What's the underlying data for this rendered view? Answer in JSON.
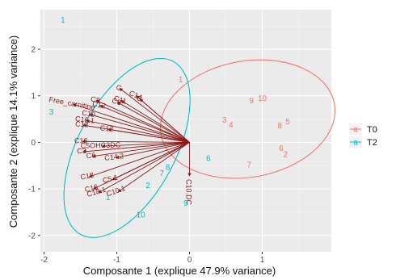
{
  "chart_data": {
    "type": "scatter",
    "title": "",
    "xlabel": "Composante 1 (explique 47.9% variance)",
    "ylabel": "Composante 2 (explique 14.1% variance)",
    "xlim": [
      -2.05,
      1.95
    ],
    "ylim": [
      -2.35,
      2.85
    ],
    "xticks": [
      -2,
      -1,
      0,
      1
    ],
    "yticks": [
      -2,
      -1,
      0,
      1,
      2
    ],
    "tick_labels_x": [
      "-2",
      "-1",
      "0",
      "1"
    ],
    "tick_labels_y": [
      "-2",
      "-1",
      "0",
      "1",
      "2"
    ],
    "grid": true,
    "legend_position": "right",
    "colors": {
      "T0": "#f8766d",
      "T2": "#00bfc4",
      "arrow": "#8b1a1a",
      "panel": "#ebebeb",
      "grid": "#ffffff"
    },
    "series": [
      {
        "name": "T0",
        "points": [
          {
            "label": "1",
            "x": -0.12,
            "y": 1.35
          },
          {
            "label": "9",
            "x": 0.85,
            "y": 0.9
          },
          {
            "label": "10",
            "x": 1.0,
            "y": 0.95
          },
          {
            "label": "3",
            "x": 0.48,
            "y": 0.48
          },
          {
            "label": "4",
            "x": 0.57,
            "y": 0.38
          },
          {
            "label": "5",
            "x": 1.35,
            "y": 0.45
          },
          {
            "label": "8",
            "x": 1.24,
            "y": 0.36
          },
          {
            "label": "6",
            "x": 1.26,
            "y": -0.12
          },
          {
            "label": "2",
            "x": 1.32,
            "y": -0.25
          },
          {
            "label": "7",
            "x": 0.82,
            "y": -0.48
          }
        ]
      },
      {
        "name": "T2",
        "points": [
          {
            "label": "1",
            "x": -1.74,
            "y": 2.63
          },
          {
            "label": "3",
            "x": -1.9,
            "y": 0.66
          },
          {
            "label": "6",
            "x": 0.26,
            "y": -0.34
          },
          {
            "label": "8",
            "x": -0.3,
            "y": -0.53
          },
          {
            "label": "7",
            "x": -0.38,
            "y": -0.66
          },
          {
            "label": "2",
            "x": -0.57,
            "y": -0.92
          },
          {
            "label": "9",
            "x": -0.05,
            "y": -1.3
          },
          {
            "label": "10",
            "x": -0.67,
            "y": -1.55
          },
          {
            "label": "1",
            "x": -1.12,
            "y": -1.18
          }
        ]
      }
    ],
    "ellipses": [
      {
        "series": "T0",
        "cx": 0.8,
        "cy": 0.5,
        "rx": 0.8,
        "ry": 1.21,
        "angle": 80
      },
      {
        "series": "T2",
        "cx": -0.86,
        "cy": -0.12,
        "rx": 1.35,
        "ry": 0.67,
        "angle": -62
      }
    ],
    "variables": [
      {
        "label": "C",
        "x": -0.96,
        "y": 1.16
      },
      {
        "label": "C14",
        "x": -0.73,
        "y": 1.0
      },
      {
        "label": "C",
        "x": -0.68,
        "y": 0.93
      },
      {
        "label": "C11",
        "x": -0.94,
        "y": 0.9
      },
      {
        "label": "C5",
        "x": -0.99,
        "y": 0.86
      },
      {
        "label": "C8",
        "x": -1.28,
        "y": 0.9
      },
      {
        "label": "C12",
        "x": -1.23,
        "y": 0.79
      },
      {
        "label": "Free_carnitine",
        "x": -1.6,
        "y": 0.82
      },
      {
        "label": "C10",
        "x": -1.37,
        "y": 0.6
      },
      {
        "label": "C16.1",
        "x": -1.42,
        "y": 0.47
      },
      {
        "label": "C14",
        "x": -1.46,
        "y": 0.37
      },
      {
        "label": "C12",
        "x": -1.12,
        "y": 0.28
      },
      {
        "label": "C16",
        "x": -1.47,
        "y": 0.02
      },
      {
        "label": "C5OHC3DC",
        "x": -1.2,
        "y": -0.08
      },
      {
        "label": "C3",
        "x": -1.46,
        "y": -0.2
      },
      {
        "label": "C6",
        "x": -1.33,
        "y": -0.3
      },
      {
        "label": "C14.2",
        "x": -1.01,
        "y": -0.33
      },
      {
        "label": "C18",
        "x": -1.38,
        "y": -0.74
      },
      {
        "label": "C5.1",
        "x": -1.06,
        "y": -0.8
      },
      {
        "label": "C16",
        "x": -1.32,
        "y": -1.0
      },
      {
        "label": "C18.1",
        "x": -1.25,
        "y": -1.08
      },
      {
        "label": "C10.1",
        "x": -0.98,
        "y": -1.06
      },
      {
        "label": "C10.DC",
        "x": 0.0,
        "y": -0.72
      }
    ],
    "legend": {
      "entries": [
        "T0",
        "T2"
      ],
      "symbol_letter": "a"
    }
  }
}
